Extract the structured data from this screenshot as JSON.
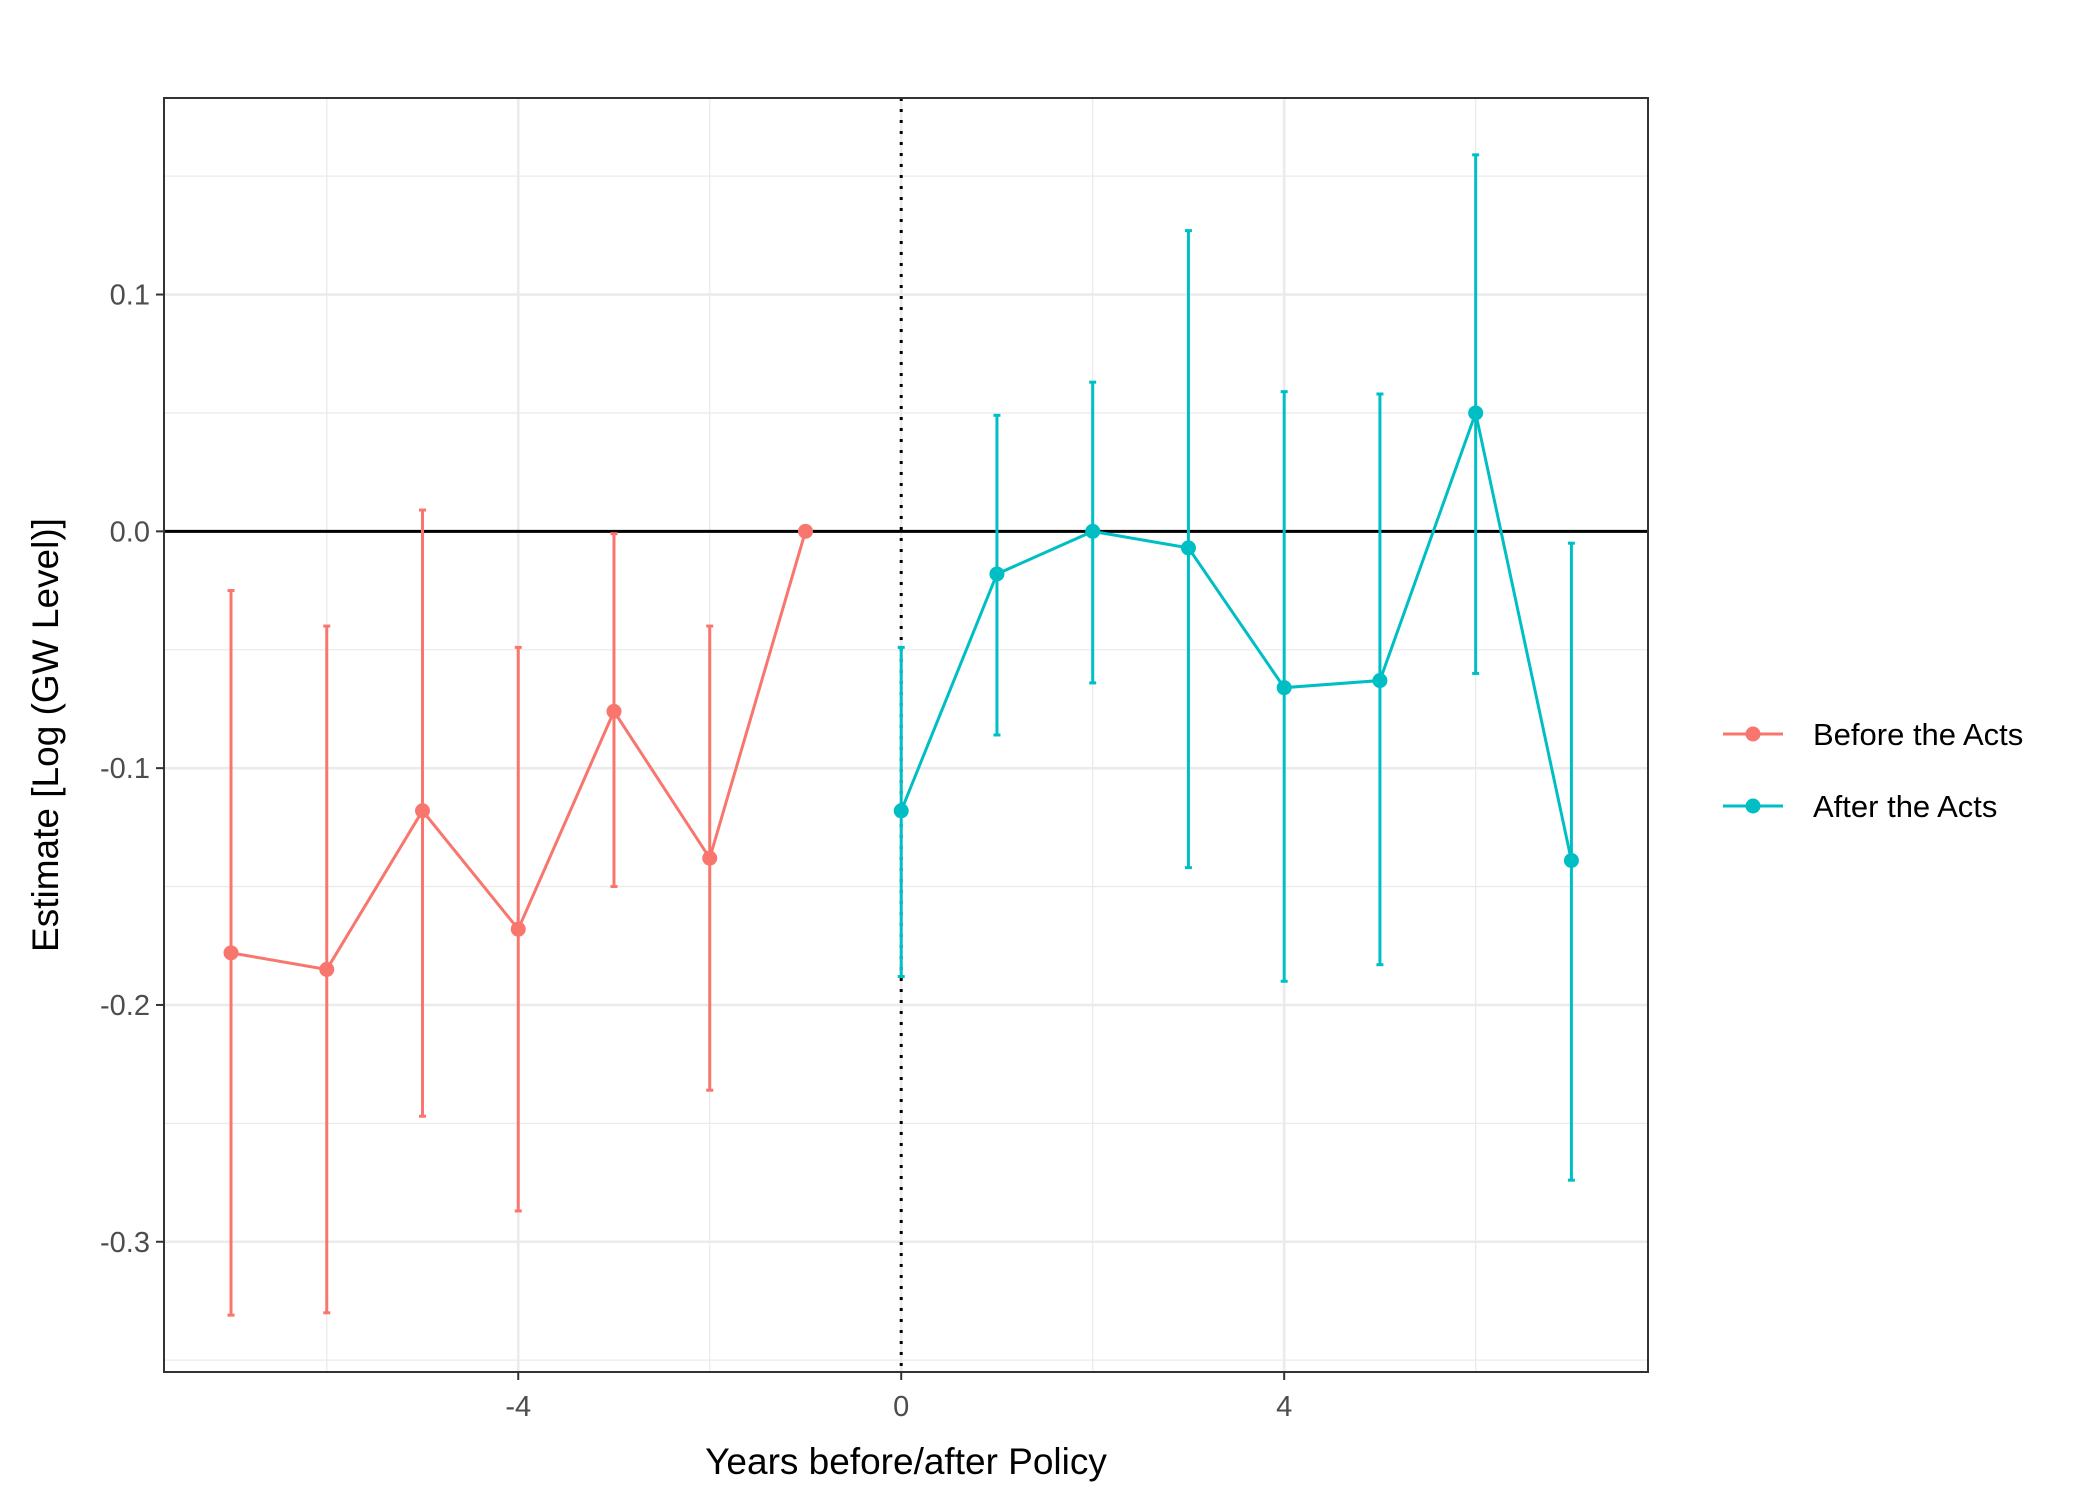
{
  "chart_data": {
    "type": "line",
    "title": "",
    "xlabel": "Years before/after Policy",
    "ylabel": "Estimate [Log (GW Level)]",
    "xlim": [
      -7.7,
      7.8
    ],
    "ylim": [
      -0.355,
      0.183
    ],
    "x_ticks": [
      -4,
      0,
      4
    ],
    "x_tick_labels": [
      "-4",
      "0",
      "4"
    ],
    "y_ticks": [
      0.1,
      0.0,
      -0.1,
      -0.2,
      -0.3
    ],
    "y_tick_labels": [
      "0.1",
      "0.0",
      "-0.1",
      "-0.2",
      "-0.3"
    ],
    "grid": true,
    "reference_lines": {
      "horizontal_solid_at": 0,
      "vertical_dotted_at": 0
    },
    "legend_position": "right",
    "series": [
      {
        "name": "Before the Acts",
        "color": "#F8766D",
        "points": [
          {
            "x": -7,
            "y": -0.178,
            "lower": -0.331,
            "upper": -0.025
          },
          {
            "x": -6,
            "y": -0.185,
            "lower": -0.33,
            "upper": -0.04
          },
          {
            "x": -5,
            "y": -0.118,
            "lower": -0.247,
            "upper": 0.009
          },
          {
            "x": -4,
            "y": -0.168,
            "lower": -0.287,
            "upper": -0.049
          },
          {
            "x": -3,
            "y": -0.076,
            "lower": -0.15,
            "upper": -0.001
          },
          {
            "x": -2,
            "y": -0.138,
            "lower": -0.236,
            "upper": -0.04
          },
          {
            "x": -1,
            "y": 0.0
          }
        ]
      },
      {
        "name": "After the Acts",
        "color": "#00BFC4",
        "points": [
          {
            "x": 0,
            "y": -0.118,
            "lower": -0.188,
            "upper": -0.049
          },
          {
            "x": 1,
            "y": -0.018,
            "lower": -0.086,
            "upper": 0.049
          },
          {
            "x": 2,
            "y": 0.0,
            "lower": -0.064,
            "upper": 0.063
          },
          {
            "x": 3,
            "y": -0.007,
            "lower": -0.142,
            "upper": 0.127
          },
          {
            "x": 4,
            "y": -0.066,
            "lower": -0.19,
            "upper": 0.059
          },
          {
            "x": 5,
            "y": -0.063,
            "lower": -0.183,
            "upper": 0.058
          },
          {
            "x": 6,
            "y": 0.05,
            "lower": -0.06,
            "upper": 0.159
          },
          {
            "x": 7,
            "y": -0.139,
            "lower": -0.274,
            "upper": -0.005
          }
        ]
      }
    ]
  }
}
